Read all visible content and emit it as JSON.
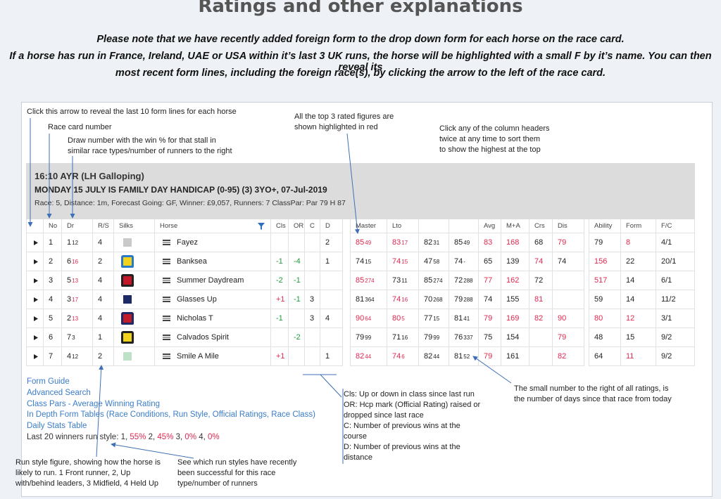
{
  "header": {
    "title": "Ratings and other explanations",
    "notice": [
      "Please note that we have recently added foreign form to the drop down form for each horse on the race card.",
      "If a horse has run in France, Ireland, UAE or USA within it’s last 3 UK runs, the horse will be highlighted with a small F by it’s name. You can then reveal its",
      "most recent form lines, including the foreign race(s), by clicking the arrow to the left of the race card."
    ]
  },
  "annotations": [
    {
      "lines": [
        "Click this arrow to reveal the last 10 form lines for each horse"
      ]
    },
    {
      "lines": [
        "Race card number"
      ]
    },
    {
      "lines": [
        "Draw number with the win % for that stall in",
        "similar race types/number of runners to the right"
      ]
    },
    {
      "lines": [
        "All the top 3 rated figures are",
        "shown highlighted in red"
      ]
    },
    {
      "lines": [
        "Click any of the column headers",
        "twice at any time to sort them",
        "to show the highest at the top"
      ]
    },
    {
      "lines": [
        "The small number to the right of all ratings, is",
        "the number of days since that race from today"
      ]
    },
    {
      "lines": [
        "Cls: Up or down in class since last run",
        "OR: Hcp mark (Official Rating) raised or",
        "dropped since last race",
        "C: Number of previous wins at the",
        "course",
        "D: Number of previous wins at the",
        "distance"
      ]
    },
    {
      "lines": [
        "Run style figure, showing how the horse is",
        "likely to run. 1 Front runner, 2, Up",
        "with/behind leaders, 3 Midfield, 4 Held Up"
      ]
    },
    {
      "lines": [
        "See which run styles have recently",
        "been successful for this race",
        "type/number of runners"
      ]
    }
  ],
  "race": {
    "title": "16:10 AYR (LH Galloping)",
    "name": "MONDAY 15 JULY IS FAMILY DAY HANDICAP (0-95) (3) 3YO+, 07-Jul-2019",
    "details": "Race: 5,  Distance: 1m,  Forecast Going: GF,  Winner: £9,057,  Runners: 7  ClassPar: Par 79 H 87"
  },
  "table": {
    "palette": {
      "red": "#e0284f",
      "green": "#1f9a3b"
    },
    "headers": {
      "left": [
        null,
        "No",
        "Dr",
        "R/S",
        "Silks",
        "Horse",
        "Cls",
        "OR",
        "C",
        "D"
      ],
      "mid": [
        "Master",
        "Lto",
        null,
        null,
        "Avg",
        "M+A",
        "Crs",
        "Dis"
      ],
      "right": [
        "Ability",
        "Form",
        "F/C"
      ]
    },
    "rows": [
      {
        "left": [
          "1",
          {
            "text": "1",
            "sup": "12"
          },
          "4",
          "Fayez",
          null,
          null,
          null,
          "2"
        ],
        "mid": [
          {
            "text": "85",
            "sup": "49",
            "c": "red"
          },
          {
            "text": "83",
            "sup": "17",
            "c": "red"
          },
          {
            "text": "82",
            "sup": "31"
          },
          {
            "text": "85",
            "sup": "49"
          },
          {
            "text": "83",
            "c": "red"
          },
          {
            "text": "168",
            "c": "red"
          },
          "68",
          {
            "text": "79",
            "c": "red"
          }
        ],
        "right": [
          "79",
          {
            "text": "8",
            "c": "red"
          },
          "4/1"
        ]
      },
      {
        "left": [
          "2",
          {
            "text": "6",
            "sup": "16",
            "sc": "red"
          },
          "2",
          "Banksea",
          {
            "text": "-1",
            "c": "green"
          },
          {
            "text": "-4",
            "c": "green"
          },
          null,
          "1"
        ],
        "mid": [
          {
            "text": "74",
            "sup": "15"
          },
          {
            "text": "74",
            "sup": "15",
            "c": "red"
          },
          {
            "text": "47",
            "sup": "58"
          },
          {
            "text": "74",
            "sup": "-"
          },
          "65",
          "139",
          {
            "text": "74",
            "c": "red"
          },
          "74"
        ],
        "right": [
          {
            "text": "156",
            "c": "red"
          },
          "22",
          "20/1"
        ]
      },
      {
        "left": [
          "3",
          {
            "text": "5",
            "sup": "13",
            "sc": "red"
          },
          "4",
          "Summer Daydream",
          {
            "text": "-2",
            "c": "green"
          },
          {
            "text": "-1",
            "c": "green"
          },
          null,
          null
        ],
        "mid": [
          {
            "text": "85",
            "sup": "274",
            "c": "red"
          },
          {
            "text": "73",
            "sup": "11"
          },
          {
            "text": "85",
            "sup": "274"
          },
          {
            "text": "72",
            "sup": "288"
          },
          {
            "text": "77",
            "c": "red"
          },
          {
            "text": "162",
            "c": "red"
          },
          "72",
          null
        ],
        "right": [
          {
            "text": "517",
            "c": "red"
          },
          "14",
          "6/1"
        ]
      },
      {
        "left": [
          "4",
          {
            "text": "3",
            "sup": "17",
            "sc": "red"
          },
          "4",
          "Glasses Up",
          {
            "text": "+1",
            "c": "red"
          },
          {
            "text": "-1",
            "c": "green"
          },
          "3",
          null
        ],
        "mid": [
          {
            "text": "81",
            "sup": "364"
          },
          {
            "text": "74",
            "sup": "16",
            "c": "red"
          },
          {
            "text": "70",
            "sup": "268"
          },
          {
            "text": "79",
            "sup": "288"
          },
          "74",
          "155",
          {
            "text": "81",
            "c": "red"
          },
          null
        ],
        "right": [
          "59",
          "14",
          "11/2"
        ]
      },
      {
        "left": [
          "5",
          {
            "text": "2",
            "sup": "13",
            "sc": "red"
          },
          "4",
          "Nicholas T",
          {
            "text": "-1",
            "c": "green"
          },
          null,
          "3",
          "4"
        ],
        "mid": [
          {
            "text": "90",
            "sup": "64",
            "c": "red"
          },
          {
            "text": "80",
            "sup": "5",
            "c": "red"
          },
          {
            "text": "77",
            "sup": "15"
          },
          {
            "text": "81",
            "sup": "41"
          },
          {
            "text": "79",
            "c": "red"
          },
          {
            "text": "169",
            "c": "red"
          },
          {
            "text": "82",
            "c": "red"
          },
          {
            "text": "90",
            "c": "red"
          }
        ],
        "right": [
          {
            "text": "80",
            "c": "red"
          },
          {
            "text": "12",
            "c": "red"
          },
          "3/1"
        ]
      },
      {
        "left": [
          "6",
          {
            "text": "7",
            "sup": "3"
          },
          "1",
          "Calvados Spirit",
          null,
          {
            "text": "-2",
            "c": "green"
          },
          null,
          null
        ],
        "mid": [
          {
            "text": "79",
            "sup": "99"
          },
          {
            "text": "71",
            "sup": "16"
          },
          {
            "text": "79",
            "sup": "99"
          },
          {
            "text": "76",
            "sup": "337"
          },
          "75",
          "154",
          null,
          {
            "text": "79",
            "c": "red"
          }
        ],
        "right": [
          "48",
          "15",
          "9/2"
        ]
      },
      {
        "left": [
          "7",
          {
            "text": "4",
            "sup": "12"
          },
          "2",
          "Smile A Mile",
          {
            "text": "+1",
            "c": "red"
          },
          null,
          null,
          "1"
        ],
        "mid": [
          {
            "text": "82",
            "sup": "44",
            "c": "red"
          },
          {
            "text": "74",
            "sup": "6",
            "c": "red"
          },
          {
            "text": "82",
            "sup": "44"
          },
          {
            "text": "81",
            "sup": "52"
          },
          {
            "text": "79",
            "c": "red"
          },
          "161",
          null,
          {
            "text": "82",
            "c": "red"
          }
        ],
        "right": [
          "64",
          {
            "text": "11",
            "c": "red"
          },
          "9/2"
        ]
      }
    ]
  },
  "links": [
    "Form Guide",
    "Advanced Search",
    "Class Pars - Average Winning Rating",
    "In Depth Form Tables (Race Conditions, Run Style, Official Ratings, Race Class)",
    "Daily Stats Table"
  ],
  "run_style": [
    {
      "text": "Last 20 winners run style: 1, "
    },
    {
      "text": "55%",
      "c": "red"
    },
    {
      "text": " 2, "
    },
    {
      "text": "45%",
      "c": "red"
    },
    {
      "text": " 3, "
    },
    {
      "text": "0%",
      "c": "red"
    },
    {
      "text": " 4, "
    },
    {
      "text": "0%",
      "c": "red"
    }
  ]
}
